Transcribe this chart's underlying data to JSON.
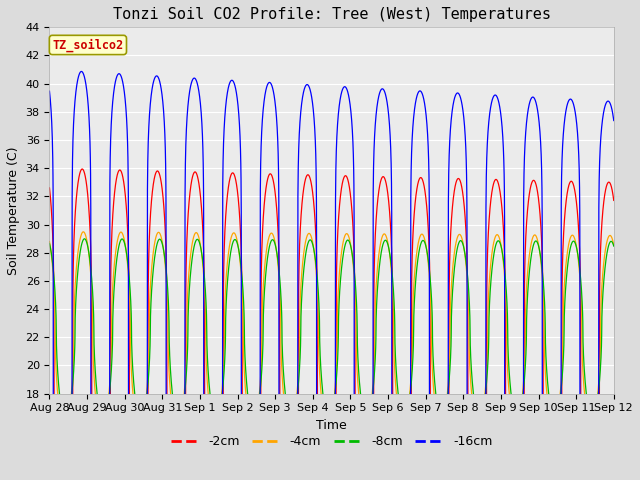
{
  "title": "Tonzi Soil CO2 Profile: Tree (West) Temperatures",
  "xlabel": "Time",
  "ylabel": "Soil Temperature (C)",
  "ylim": [
    18,
    44
  ],
  "yticks": [
    18,
    20,
    22,
    24,
    26,
    28,
    30,
    32,
    34,
    36,
    38,
    40,
    42,
    44
  ],
  "bg_color": "#dcdcdc",
  "plot_bg_color": "#ebebeb",
  "legend_label": "TZ_soilco2",
  "grid_color": "#ffffff",
  "title_fontsize": 11,
  "axis_label_fontsize": 9,
  "tick_fontsize": 8,
  "xtick_labels": [
    "Aug 28",
    "Aug 29",
    "Aug 30",
    "Aug 31",
    "Sep 1",
    "Sep 2",
    "Sep 3",
    "Sep 4",
    "Sep 5",
    "Sep 6",
    "Sep 7",
    "Sep 8",
    "Sep 9",
    "Sep 10",
    "Sep 11",
    "Sep 12"
  ],
  "n_days": 15,
  "n_points": 5000,
  "series": [
    {
      "label": "-2cm",
      "color": "#ff0000",
      "base": 21.0,
      "amp": 13.0,
      "phase": 0.62,
      "skew": 0.3,
      "decay": 0.08
    },
    {
      "label": "-4cm",
      "color": "#ffa500",
      "base": 22.5,
      "amp": 7.0,
      "phase": 0.65,
      "skew": 0.5,
      "decay": 0.04
    },
    {
      "label": "-8cm",
      "color": "#00bb00",
      "base": 22.5,
      "amp": 6.5,
      "phase": 0.68,
      "skew": 0.55,
      "decay": 0.03
    },
    {
      "label": "-16cm",
      "color": "#0000ff",
      "base": 21.0,
      "amp": 20.0,
      "phase": 0.6,
      "skew": 0.15,
      "decay": 0.12
    }
  ]
}
